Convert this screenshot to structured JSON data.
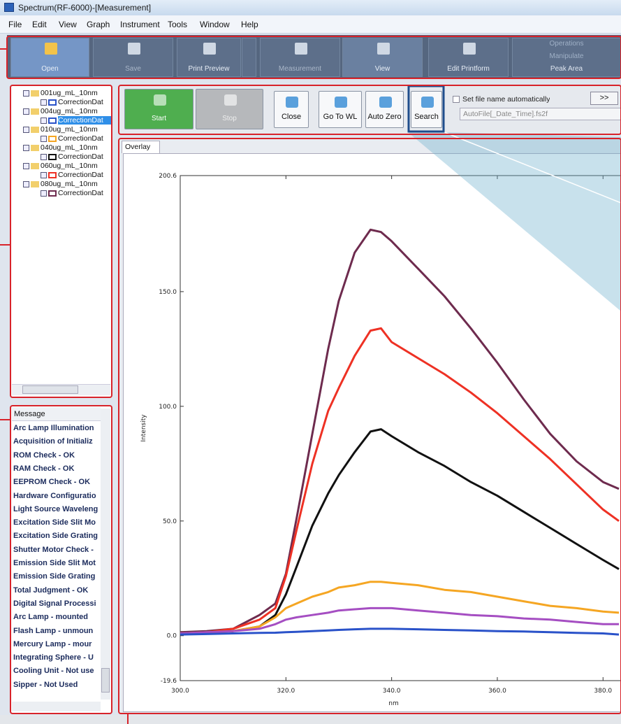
{
  "window": {
    "title": "Spectrum(RF-6000)-[Measurement]",
    "menu": [
      "File",
      "Edit",
      "View",
      "Graph",
      "Instrument",
      "Tools",
      "Window",
      "Help"
    ]
  },
  "toolbar": {
    "buttons": [
      "Open",
      "Save",
      "Print Preview",
      "Measurement",
      "View",
      "Edit Printform"
    ],
    "operations": [
      "Operations",
      "Manipulate",
      "Peak Area"
    ]
  },
  "tree": {
    "items": [
      {
        "label": "001ug_mL_10nm",
        "child": "CorrectionDat"
      },
      {
        "label": "004ug_mL_10nm",
        "child": "CorrectionDat"
      },
      {
        "label": "010ug_mL_10nm",
        "child": "CorrectionDat"
      },
      {
        "label": "040ug_mL_10nm",
        "child": "CorrectionDat"
      },
      {
        "label": "060ug_mL_10nm",
        "child": "CorrectionDat"
      },
      {
        "label": "080ug_mL_10nm",
        "child": "CorrectionDat"
      }
    ]
  },
  "messages": {
    "header": "Message",
    "items": [
      "Arc Lamp Illumination",
      "Acquisition of Initializ",
      "ROM Check - OK",
      "RAM Check - OK",
      "EEPROM Check - OK",
      "Hardware Configuratio",
      "Light Source Waveleng",
      "Excitation Side Slit Mo",
      "Excitation Side Grating",
      "Shutter Motor Check -",
      "Emission Side Slit Mot",
      "Emission Side Grating",
      "Total Judgment - OK",
      "Digital Signal Processi",
      "Arc Lamp - mounted",
      "Flash Lamp - unmoun",
      "Mercury Lamp - mour",
      "Integrating Sphere - U",
      "Cooling Unit - Not use",
      "Sipper - Not Used"
    ]
  },
  "measure_toolbar": {
    "buttons": [
      "Start",
      "Stop",
      "Close",
      "Go To WL",
      "Auto Zero",
      "Search"
    ],
    "checkbox": "Set file name automatically",
    "more": ">>",
    "file_name": "AutoFile[_Date_Time].fs2f"
  },
  "tab": "Overlay",
  "chart_data": {
    "type": "line",
    "xlabel": "nm",
    "ylabel": "Intensity",
    "x": [
      300,
      305,
      310,
      315,
      318,
      320,
      322,
      325,
      328,
      330,
      333,
      336,
      338,
      340,
      345,
      350,
      355,
      360,
      365,
      370,
      375,
      380,
      383
    ],
    "series": [
      {
        "color": "#6e2b4e",
        "values": [
          1.5,
          2,
          3,
          9,
          14,
          27,
          51,
          88,
          125,
          146,
          167,
          177,
          176,
          172,
          160,
          148,
          134,
          119,
          103,
          88,
          76,
          67,
          64
        ]
      },
      {
        "color": "#ee3124",
        "values": [
          1,
          1.5,
          3,
          7,
          12,
          26,
          46,
          75,
          98,
          108,
          122,
          133,
          134,
          128,
          121,
          114,
          106,
          97,
          87,
          77,
          66,
          55,
          50
        ]
      },
      {
        "color": "#111111",
        "values": [
          1,
          1.5,
          2,
          4,
          9,
          18,
          30,
          48,
          62,
          70,
          80,
          89,
          90,
          87,
          80,
          74,
          67,
          61,
          54,
          47,
          40,
          33,
          29
        ]
      },
      {
        "color": "#f5a623",
        "values": [
          1,
          1.5,
          2,
          4,
          8,
          12,
          14,
          17,
          19,
          21,
          22,
          23.5,
          23.5,
          23,
          22,
          20,
          19,
          17,
          15,
          13,
          12,
          10.5,
          10
        ]
      },
      {
        "color": "#a54ec2",
        "values": [
          1,
          1.5,
          2,
          3,
          5,
          7,
          8,
          9,
          10,
          11,
          11.5,
          12,
          12,
          12,
          11,
          10,
          9,
          8.5,
          7.5,
          7,
          6,
          5,
          5
        ]
      },
      {
        "color": "#2a52c9",
        "values": [
          0.5,
          0.7,
          1,
          1.2,
          1.3,
          1.5,
          1.7,
          2,
          2.3,
          2.5,
          2.8,
          3,
          3,
          3,
          2.8,
          2.5,
          2.3,
          2,
          1.8,
          1.5,
          1.2,
          1,
          0.5
        ]
      }
    ],
    "xlim": [
      300,
      383.4
    ],
    "ylim": [
      -19.6,
      200.6
    ],
    "xticks": [
      {
        "value": 300,
        "label": "300.0"
      },
      {
        "value": 320,
        "label": "320.0"
      },
      {
        "value": 340,
        "label": "340.0"
      },
      {
        "value": 360,
        "label": "360.0"
      },
      {
        "value": 380,
        "label": "380.0"
      }
    ],
    "yticks": [
      -19.6,
      {
        "value": 0,
        "label": "0.0"
      },
      {
        "value": 50,
        "label": "50.0"
      },
      {
        "value": 100,
        "label": "100.0"
      },
      {
        "value": 150,
        "label": "150.0"
      },
      200.6
    ]
  }
}
